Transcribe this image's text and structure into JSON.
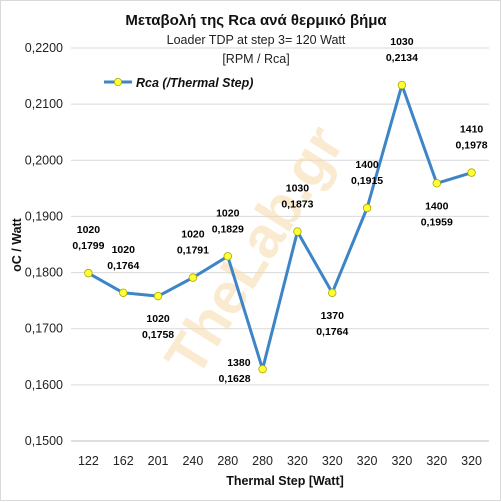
{
  "chart_data": {
    "type": "line",
    "title": "Μεταβολή της Rca ανά θερμικό βήμα",
    "subtitle_lines": [
      "Loader TDP at step 3= 120 Watt",
      "[RPM / Rca]"
    ],
    "xlabel": "Thermal Step [Watt]",
    "ylabel": "oC / Watt",
    "categories": [
      "122",
      "162",
      "201",
      "240",
      "280",
      "280",
      "320",
      "320",
      "320",
      "320",
      "320",
      "320"
    ],
    "series": [
      {
        "name": "Rca (/Thermal Step)",
        "values": [
          0.1799,
          0.1764,
          0.1758,
          0.1791,
          0.1829,
          0.1628,
          0.1873,
          0.1764,
          0.1915,
          0.2134,
          0.1959,
          0.1978
        ],
        "rpm": [
          "1020",
          "1020",
          "1020",
          "1020",
          "1020",
          "1380",
          "1030",
          "1370",
          "1400",
          "1030",
          "1400",
          "1410"
        ],
        "value_labels": [
          "0,1799",
          "0,1764",
          "0,1758",
          "0,1791",
          "0,1829",
          "0,1628",
          "0,1873",
          "0,1764",
          "0,1915",
          "0,2134",
          "0,1959",
          "0,1978"
        ],
        "label_position": [
          "above",
          "above",
          "below",
          "above",
          "above",
          "left",
          "above",
          "below",
          "above",
          "above",
          "below",
          "above"
        ],
        "line_color": "#3d85c6",
        "marker_color": "#ffff33"
      }
    ],
    "ylim": [
      0.15,
      0.22
    ],
    "yticks": [
      0.15,
      0.16,
      0.17,
      0.18,
      0.19,
      0.2,
      0.21,
      0.22
    ],
    "ytick_labels": [
      "0,1500",
      "0,1600",
      "0,1700",
      "0,1800",
      "0,1900",
      "0,2000",
      "0,2100",
      "0,2200"
    ],
    "grid": true,
    "legend_position": "top-left",
    "watermark": "TheLab.gr"
  }
}
